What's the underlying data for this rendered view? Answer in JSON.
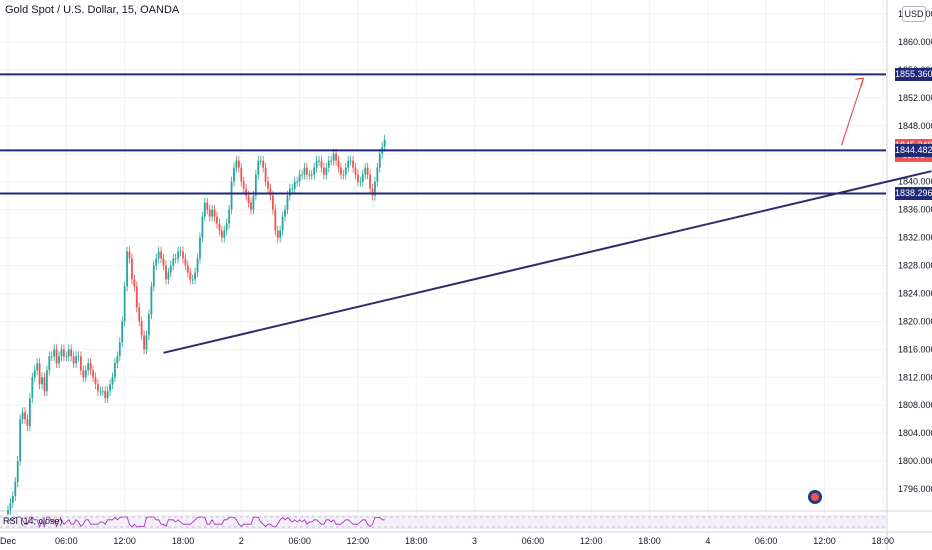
{
  "header": {
    "title": "Gold Spot / U.S. Dollar, 15, OANDA",
    "currency": "USD"
  },
  "rsi": {
    "label": "RSI (14, close)"
  },
  "colors": {
    "up": "#26a69a",
    "down": "#ef5350",
    "level": "#1e2a78",
    "trend": "#2e2a6e",
    "arrow": "#e53935",
    "grid": "#f0f3fa"
  },
  "chart_data": {
    "type": "candlestick",
    "title": "Gold Spot / U.S. Dollar, 15, OANDA",
    "ylim": [
      1793,
      1866
    ],
    "y_ticks": [
      1796,
      1800,
      1804,
      1808,
      1812,
      1816,
      1820,
      1824,
      1828,
      1832,
      1836,
      1840,
      1844,
      1848,
      1852,
      1856,
      1860,
      1864
    ],
    "x_tick_labels": [
      {
        "label": "Dec",
        "bar": 0
      },
      {
        "label": "06:00",
        "bar": 24
      },
      {
        "label": "12:00",
        "bar": 48
      },
      {
        "label": "18:00",
        "bar": 72
      },
      {
        "label": "2",
        "bar": 96
      },
      {
        "label": "06:00",
        "bar": 120
      },
      {
        "label": "12:00",
        "bar": 144
      },
      {
        "label": "18:00",
        "bar": 168
      },
      {
        "label": "3",
        "bar": 192
      },
      {
        "label": "06:00",
        "bar": 216
      },
      {
        "label": "12:00",
        "bar": 240
      },
      {
        "label": "18:00",
        "bar": 264
      },
      {
        "label": "4",
        "bar": 288
      },
      {
        "label": "06:00",
        "bar": 312
      },
      {
        "label": "12:00",
        "bar": 336
      },
      {
        "label": "18:00",
        "bar": 360
      }
    ],
    "closes": [
      1793,
      1794,
      1795,
      1797,
      1800,
      1806,
      1807,
      1806,
      1805,
      1809,
      1812,
      1813,
      1814,
      1811,
      1812,
      1810,
      1813,
      1815,
      1815,
      1816,
      1814,
      1815,
      1816,
      1815,
      1815,
      1816,
      1815,
      1814,
      1815,
      1815,
      1813,
      1812,
      1813,
      1814,
      1813,
      1812,
      1811,
      1810,
      1810,
      1810,
      1809,
      1810,
      1811,
      1812,
      1814,
      1815,
      1817,
      1820,
      1825,
      1830,
      1829,
      1826,
      1825,
      1822,
      1820,
      1818,
      1816,
      1818,
      1821,
      1825,
      1828,
      1829,
      1830,
      1829,
      1828,
      1826,
      1827,
      1828,
      1829,
      1829,
      1830,
      1830,
      1829,
      1828,
      1827,
      1826,
      1826,
      1827,
      1829,
      1832,
      1835,
      1837,
      1836,
      1835,
      1836,
      1835,
      1834,
      1833,
      1832,
      1833,
      1834,
      1836,
      1840,
      1842,
      1843,
      1842,
      1840,
      1839,
      1838,
      1837,
      1836,
      1838,
      1841,
      1843,
      1843,
      1842,
      1840,
      1839,
      1838,
      1836,
      1833,
      1832,
      1833,
      1835,
      1836,
      1838,
      1839,
      1839,
      1840,
      1840,
      1841,
      1841,
      1842,
      1841,
      1841,
      1841,
      1842,
      1843,
      1843,
      1842,
      1841,
      1842,
      1843,
      1843,
      1844,
      1843,
      1842,
      1841,
      1841,
      1842,
      1843,
      1843,
      1842,
      1841,
      1840,
      1840,
      1841,
      1842,
      1841,
      1839,
      1838,
      1840,
      1842,
      1844,
      1845,
      1846
    ],
    "price_levels": [
      {
        "label": "1855.360",
        "value": 1855.36,
        "color": "navy"
      },
      {
        "label": "1845.240",
        "value": 1845.24,
        "color": "red"
      },
      {
        "label": "08:56",
        "value": 1843.7,
        "color": "red"
      },
      {
        "label": "1844.482",
        "value": 1844.48,
        "color": "navy"
      },
      {
        "label": "1838.296",
        "value": 1838.3,
        "color": "navy"
      }
    ],
    "trendline": {
      "from": {
        "bar": 64,
        "price": 1815.5
      },
      "to": {
        "bar": 380,
        "price": 1841.5
      }
    },
    "arrow": {
      "from": {
        "bar": 343,
        "price": 1845.2
      },
      "to": {
        "bar": 352,
        "price": 1854.8
      }
    }
  }
}
